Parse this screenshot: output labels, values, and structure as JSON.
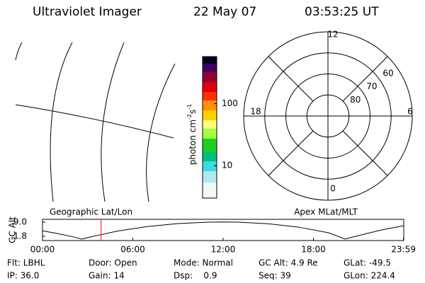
{
  "header": {
    "instrument": "Ultraviolet Imager",
    "date": "22 May 07",
    "time": "03:53:25 UT"
  },
  "colorbar": {
    "label_parts": [
      "photon cm",
      "-2",
      "s",
      "-1"
    ],
    "log": true,
    "lim": [
      3,
      575
    ],
    "ticks": [
      100,
      10
    ]
  },
  "polar": {
    "rlim": [
      90,
      50
    ],
    "rticks": [
      80,
      70,
      60
    ],
    "mlt_ticks": [
      12,
      18,
      6,
      0
    ]
  },
  "chart_data": {
    "type": "line",
    "ylabel": "GC Alt",
    "left_label": "Geographic Lat/Lon",
    "right_label": "Apex MLat/MLT",
    "x": [
      0,
      1,
      2,
      2.6,
      3.5,
      5,
      7,
      9,
      11,
      12,
      13,
      15,
      17,
      19,
      20.1,
      21,
      22.5,
      24
    ],
    "values": [
      4.6,
      3.2,
      1.6,
      0.4,
      2.0,
      4.5,
      6.8,
      8.3,
      9.0,
      9.1,
      9.0,
      8.2,
      6.5,
      3.6,
      0.4,
      2.2,
      5.0,
      7.2
    ],
    "color": "#000000",
    "xlim": [
      0,
      24
    ],
    "xticks": [
      {
        "value": 0,
        "label": "00:00"
      },
      {
        "value": 6,
        "label": "06:00"
      },
      {
        "value": 12,
        "label": "12:00"
      },
      {
        "value": 18,
        "label": "18:00"
      },
      {
        "value": 23.98,
        "label": "23:59"
      }
    ],
    "ylim": [
      -0.36,
      10.44
    ],
    "yticks": [
      {
        "value": 9,
        "label": "9.0"
      },
      {
        "value": 1.8,
        "label": "1.8"
      }
    ],
    "marker": {
      "x": 3.89,
      "color": "#ff0000"
    }
  },
  "footer": {
    "rows": [
      [
        "Flt: LBHL",
        "Door: Open",
        "Mode: Normal",
        "GC Alt: 4.9 Re",
        "GLat: -49.5"
      ],
      [
        "IP: 36.0",
        "Gain: 14",
        "Dsp:    0.9",
        "Seq: 39",
        "GLon: 224.4"
      ]
    ]
  }
}
